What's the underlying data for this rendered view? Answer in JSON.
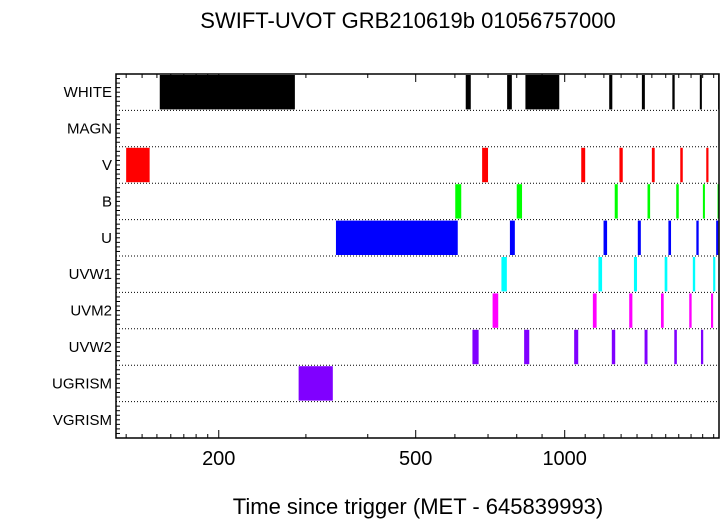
{
  "chart_data": {
    "type": "timeline",
    "title": "SWIFT-UVOT GRB210619b 01056757000",
    "xlabel": "Time since trigger (MET - 645839993)",
    "x_scale": "log",
    "xlim": [
      124,
      2050
    ],
    "x_ticks": [
      200,
      500,
      1000
    ],
    "x_tick_labels": [
      "200",
      "500",
      "1000"
    ],
    "grid": "dotted horizontal row separators",
    "rows": [
      {
        "name": "WHITE",
        "color": "#000000",
        "intervals": [
          [
            152,
            285
          ],
          [
            631,
            646
          ],
          [
            765,
            782
          ],
          [
            833,
            975
          ],
          [
            1230,
            1248
          ],
          [
            1432,
            1452
          ],
          [
            1650,
            1668
          ],
          [
            1875,
            1893
          ],
          [
            2042,
            2050
          ]
        ]
      },
      {
        "name": "MAGN",
        "color": "#000000",
        "intervals": []
      },
      {
        "name": "V",
        "color": "#ff0000",
        "intervals": [
          [
            130,
            145
          ],
          [
            681,
            700
          ],
          [
            1080,
            1100
          ],
          [
            1290,
            1310
          ],
          [
            1500,
            1520
          ],
          [
            1712,
            1732
          ],
          [
            1932,
            1952
          ]
        ]
      },
      {
        "name": "B",
        "color": "#00ff00",
        "intervals": [
          [
            601,
            618
          ],
          [
            800,
            820
          ],
          [
            1262,
            1280
          ],
          [
            1470,
            1488
          ],
          [
            1680,
            1700
          ],
          [
            1902,
            1920
          ],
          [
            2036,
            2050
          ]
        ]
      },
      {
        "name": "U",
        "color": "#0000ff",
        "intervals": [
          [
            345,
            608
          ],
          [
            775,
            793
          ],
          [
            1198,
            1218
          ],
          [
            1405,
            1425
          ],
          [
            1620,
            1640
          ],
          [
            1845,
            1865
          ],
          [
            2023,
            2043
          ]
        ]
      },
      {
        "name": "UVW1",
        "color": "#00ffff",
        "intervals": [
          [
            745,
            764
          ],
          [
            1170,
            1190
          ],
          [
            1380,
            1400
          ],
          [
            1592,
            1612
          ],
          [
            1815,
            1835
          ],
          [
            1995,
            2015
          ]
        ]
      },
      {
        "name": "UVM2",
        "color": "#ff00ff",
        "intervals": [
          [
            715,
            734
          ],
          [
            1140,
            1160
          ],
          [
            1350,
            1370
          ],
          [
            1565,
            1585
          ],
          [
            1785,
            1805
          ],
          [
            1975,
            1995
          ]
        ]
      },
      {
        "name": "UVW2",
        "color": "#8000ff",
        "intervals": [
          [
            651,
            670
          ],
          [
            828,
            848
          ],
          [
            1045,
            1065
          ],
          [
            1245,
            1265
          ],
          [
            1450,
            1470
          ],
          [
            1665,
            1685
          ],
          [
            1885,
            1905
          ]
        ]
      },
      {
        "name": "UGRISM",
        "color": "#8000ff",
        "intervals": [
          [
            290,
            340
          ]
        ]
      },
      {
        "name": "VGRISM",
        "color": "#000000",
        "intervals": []
      }
    ]
  }
}
